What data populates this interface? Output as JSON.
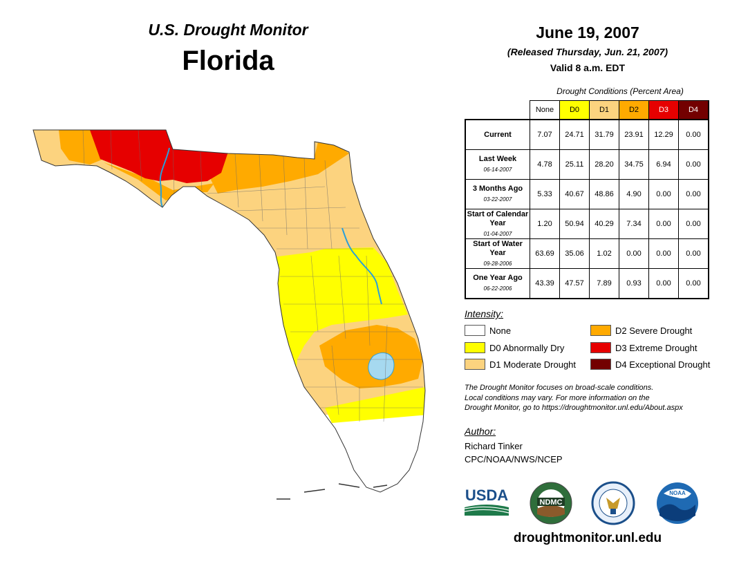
{
  "header": {
    "subtitle": "U.S. Drought Monitor",
    "state": "Florida"
  },
  "date_block": {
    "date": "June 19, 2007",
    "released": "(Released Thursday, Jun. 21, 2007)",
    "valid": "Valid 8 a.m. EDT"
  },
  "table": {
    "caption": "Drought Conditions (Percent Area)",
    "columns": [
      "None",
      "D0",
      "D1",
      "D2",
      "D3",
      "D4"
    ],
    "rows": [
      {
        "label": "Current",
        "date": "",
        "values": [
          "7.07",
          "24.71",
          "31.79",
          "23.91",
          "12.29",
          "0.00"
        ]
      },
      {
        "label": "Last Week",
        "date": "06-14-2007",
        "values": [
          "4.78",
          "25.11",
          "28.20",
          "34.75",
          "6.94",
          "0.00"
        ]
      },
      {
        "label": "3 Months Ago",
        "date": "03-22-2007",
        "values": [
          "5.33",
          "40.67",
          "48.86",
          "4.90",
          "0.00",
          "0.00"
        ]
      },
      {
        "label": "Start of Calendar Year",
        "date": "01-04-2007",
        "values": [
          "1.20",
          "50.94",
          "40.29",
          "7.34",
          "0.00",
          "0.00"
        ]
      },
      {
        "label": "Start of Water Year",
        "date": "09-28-2006",
        "values": [
          "63.69",
          "35.06",
          "1.02",
          "0.00",
          "0.00",
          "0.00"
        ]
      },
      {
        "label": "One Year Ago",
        "date": "06-22-2006",
        "values": [
          "43.39",
          "47.57",
          "7.89",
          "0.93",
          "0.00",
          "0.00"
        ]
      }
    ]
  },
  "legend": {
    "title": "Intensity:",
    "items": [
      {
        "label": "None",
        "color": "#ffffff"
      },
      {
        "label": "D0 Abnormally Dry",
        "color": "#ffff00"
      },
      {
        "label": "D1 Moderate Drought",
        "color": "#fcd37f"
      },
      {
        "label": "D2 Severe Drought",
        "color": "#ffaa00"
      },
      {
        "label": "D3 Extreme Drought",
        "color": "#e60000"
      },
      {
        "label": "D4 Exceptional Drought",
        "color": "#730000"
      }
    ]
  },
  "note": {
    "line1": "The Drought Monitor focuses on broad-scale conditions.",
    "line2": "Local conditions may vary. For more information on the",
    "line3": "Drought Monitor, go to https://droughtmonitor.unl.edu/About.aspx"
  },
  "author": {
    "title": "Author:",
    "name": "Richard Tinker",
    "org": "CPC/NOAA/NWS/NCEP"
  },
  "logos": {
    "usda": "USDA",
    "ndmc": "NDMC",
    "noaa": "NOAA"
  },
  "footer_url": "droughtmonitor.unl.edu",
  "colors": {
    "none": "#ffffff",
    "d0": "#ffff00",
    "d1": "#fcd37f",
    "d2": "#ffaa00",
    "d3": "#e60000",
    "d4": "#730000",
    "water": "#a6d9f0",
    "river": "#2b9fd8"
  }
}
